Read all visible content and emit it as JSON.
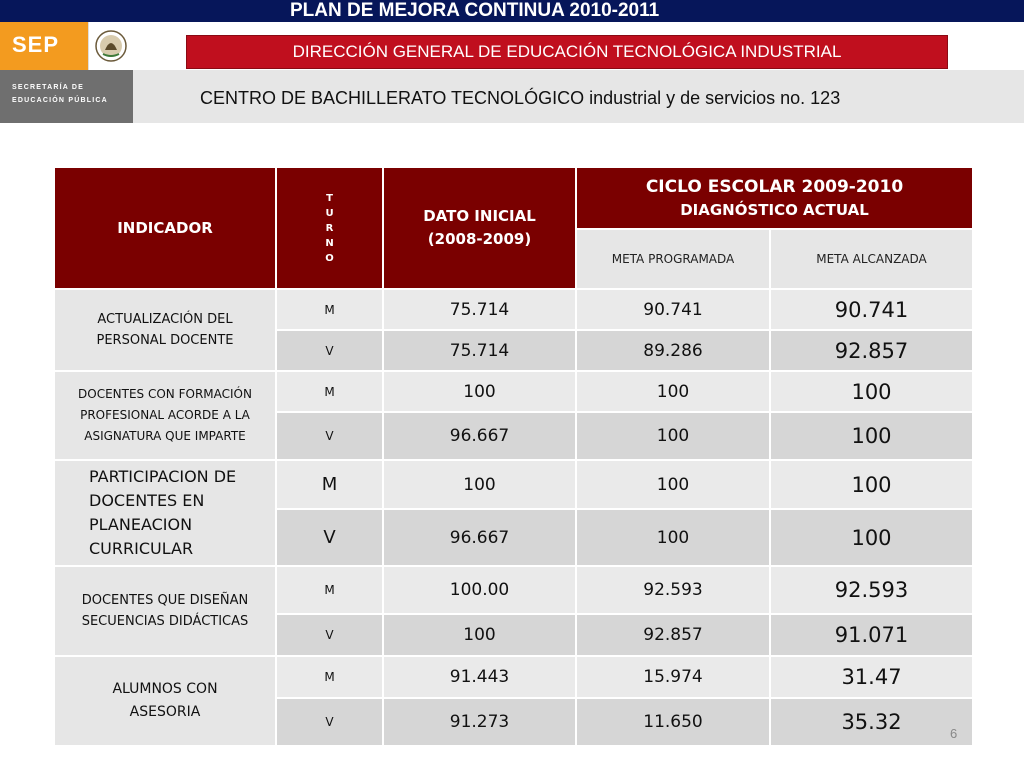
{
  "header": {
    "top_title": "PLAN DE MEJORA CONTINUA 2010-2011",
    "direccion": "DIRECCIÓN GENERAL DE EDUCACIÓN TECNOLÓGICA INDUSTRIAL",
    "school": "CENTRO DE BACHILLERATO TECNOLÓGICO industrial y de servicios no. 123"
  },
  "logo": {
    "sep": "SEP",
    "line1": "SECRETARÍA DE",
    "line2": "EDUCACIÓN PÚBLICA",
    "seal_icon": "mexico-coat-of-arms-icon"
  },
  "colors": {
    "top_bar": "#06165a",
    "direccion_band": "#c00f1e",
    "table_header": "#7a0000",
    "logo_orange": "#f39b1f"
  },
  "table": {
    "headers": {
      "indicador": "INDICADOR",
      "turno_letters": [
        "T",
        "U",
        "R",
        "N",
        "O"
      ],
      "dato_inicial_1": "DATO INICIAL",
      "dato_inicial_2": "(2008-2009)",
      "ciclo": "CICLO ESCOLAR 2009-2010",
      "diagnostico": "DIAGNÓSTICO ACTUAL",
      "meta_programada": "META PROGRAMADA",
      "meta_alcanzada": "META ALCANZADA"
    },
    "groups": [
      {
        "indicador_lines": [
          "ACTUALIZACIÓN DEL",
          "PERSONAL DOCENTE"
        ],
        "rows": [
          {
            "turno": "M",
            "dato": "75.714",
            "programada": "90.741",
            "alcanzada": "90.741"
          },
          {
            "turno": "V",
            "dato": "75.714",
            "programada": "89.286",
            "alcanzada": "92.857"
          }
        ]
      },
      {
        "indicador_lines": [
          "DOCENTES CON FORMACIÓN",
          "PROFESIONAL ACORDE A LA",
          "ASIGNATURA QUE IMPARTE"
        ],
        "rows": [
          {
            "turno": "M",
            "dato": "100",
            "programada": "100",
            "alcanzada": "100"
          },
          {
            "turno": "V",
            "dato": "96.667",
            "programada": "100",
            "alcanzada": "100"
          }
        ]
      },
      {
        "indicador_lines": [
          "PARTICIPACION DE",
          "DOCENTES EN",
          "PLANEACION",
          "CURRICULAR"
        ],
        "rows": [
          {
            "turno": "M",
            "dato": "100",
            "programada": "100",
            "alcanzada": "100"
          },
          {
            "turno": "V",
            "dato": "96.667",
            "programada": "100",
            "alcanzada": "100"
          }
        ]
      },
      {
        "indicador_lines": [
          "DOCENTES QUE DISEÑAN",
          "SECUENCIAS DIDÁCTICAS"
        ],
        "rows": [
          {
            "turno": "M",
            "dato": "100.00",
            "programada": "92.593",
            "alcanzada": "92.593"
          },
          {
            "turno": "V",
            "dato": "100",
            "programada": "92.857",
            "alcanzada": "91.071"
          }
        ]
      },
      {
        "indicador_lines": [
          "ALUMNOS CON",
          "ASESORIA"
        ],
        "rows": [
          {
            "turno": "M",
            "dato": "91.443",
            "programada": "15.974",
            "alcanzada": "31.47"
          },
          {
            "turno": "V",
            "dato": "91.273",
            "programada": "11.650",
            "alcanzada": "35.32"
          }
        ]
      }
    ]
  },
  "footer": {
    "page_number": "6"
  }
}
